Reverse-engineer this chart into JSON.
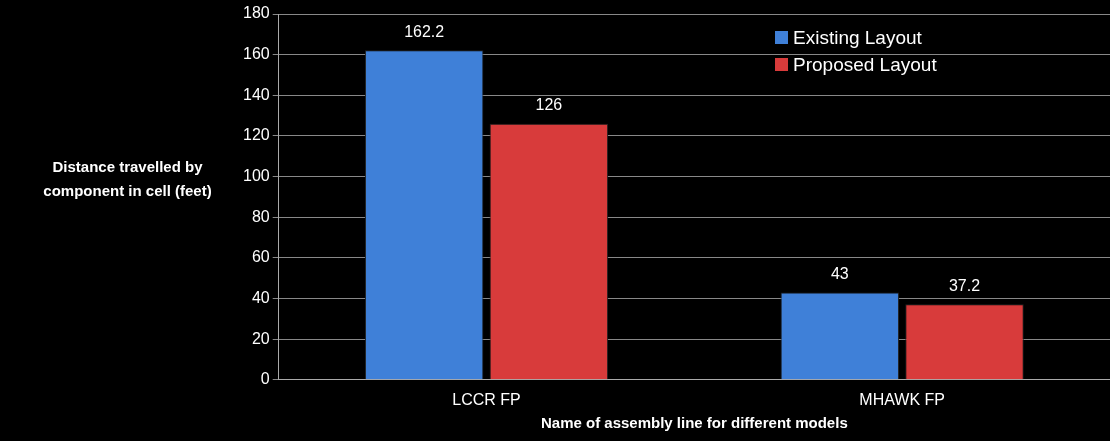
{
  "chart_data": {
    "type": "bar",
    "xlabel": "Name of assembly line for different models",
    "ylabel": "Distance travelled by component in cell (feet)",
    "categories": [
      "LCCR FP",
      "MHAWK FP"
    ],
    "series": [
      {
        "name": "Existing Layout",
        "color": "#3f80d8",
        "values": [
          162.2,
          43
        ]
      },
      {
        "name": "Proposed Layout",
        "color": "#d83b3b",
        "values": [
          126,
          37.2
        ]
      }
    ],
    "ylim": [
      0,
      180
    ],
    "yticks": [
      0,
      20,
      40,
      60,
      80,
      100,
      120,
      140,
      160,
      180
    ],
    "grid": "y",
    "legend": "top right",
    "data_labels": true
  }
}
